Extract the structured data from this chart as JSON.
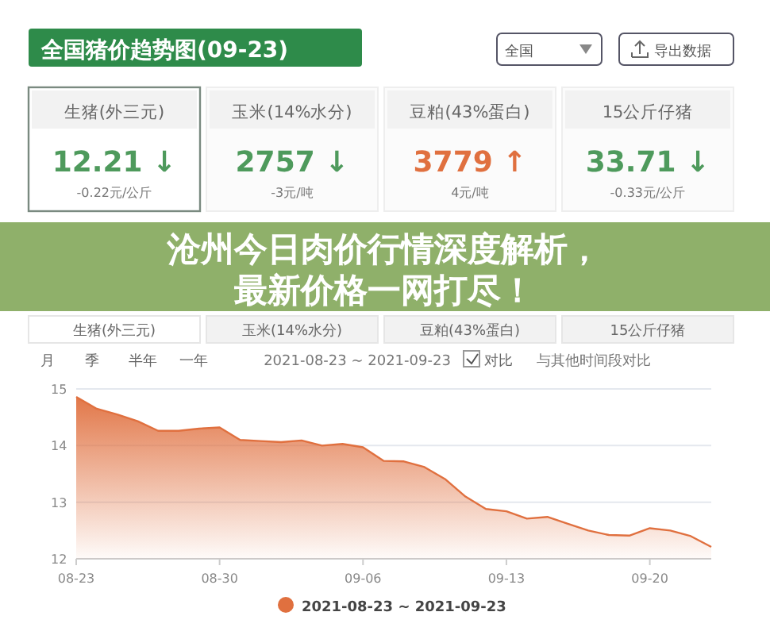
{
  "chart_data": [
    {
      "type": "other",
      "title": "全国猪价趋势图(09-23)",
      "annotations": [
        "全国",
        "导出数据",
        "生猪(外三元)",
        "12.21 ↓",
        "-0.22元/公斤",
        "玉米(14%水分)",
        "2757 ↓",
        "-3元/吨",
        "豆粕(43%蛋白)",
        "3779 ↑",
        "4元/吨",
        "15公斤仔猪",
        "33.71 ↓",
        "-0.33元/公斤"
      ],
      "colors": [
        "#4e9a5c",
        "#4e9a5c",
        "#e0703f",
        "#4e9a5c"
      ]
    },
    {
      "type": "area",
      "title": "沧州今日肉价行情深度解析，最新价格一网打尽！",
      "annotations": [
        "生猪(外三元)",
        "玉米(14%水分)",
        "豆粕(43%蛋白)",
        "15公斤仔猪",
        "月",
        "季",
        "半年",
        "一年",
        "2021-08-23 ~ 2021-09-23",
        "对比",
        "与其他时间段对比"
      ],
      "x": [
        "2021-08-23",
        "2021-08-24",
        "2021-08-25",
        "2021-08-26",
        "2021-08-27",
        "2021-08-28",
        "2021-08-29",
        "2021-08-30",
        "2021-08-31",
        "2021-09-01",
        "2021-09-02",
        "2021-09-03",
        "2021-09-04",
        "2021-09-05",
        "2021-09-06",
        "2021-09-07",
        "2021-09-08",
        "2021-09-09",
        "2021-09-10",
        "2021-09-11",
        "2021-09-12",
        "2021-09-13",
        "2021-09-14",
        "2021-09-15",
        "2021-09-16",
        "2021-09-17",
        "2021-09-18",
        "2021-09-19",
        "2021-09-20",
        "2021-09-21",
        "2021-09-22",
        "2021-09-23"
      ],
      "series": [
        {
          "name": "2021-08-23 ~ 2021-09-23",
          "color": "#e0703f",
          "values": [
            14.86,
            14.65,
            14.55,
            14.43,
            14.26,
            14.26,
            14.3,
            14.32,
            14.1,
            14.08,
            14.06,
            14.09,
            14.0,
            14.03,
            13.97,
            13.73,
            13.72,
            13.62,
            13.41,
            13.1,
            12.88,
            12.84,
            12.71,
            12.74,
            12.62,
            12.5,
            12.42,
            12.41,
            12.54,
            12.5,
            12.4,
            12.21
          ]
        }
      ],
      "xlim": [
        "2021-08-23",
        "2021-09-23"
      ],
      "xticks": [
        {
          "value": "2021-08-23",
          "label": "08-23"
        },
        {
          "value": "2021-08-30",
          "label": "08-30"
        },
        {
          "value": "2021-09-06",
          "label": "09-06"
        },
        {
          "value": "2021-09-13",
          "label": "09-13"
        },
        {
          "value": "2021-09-20",
          "label": "09-20"
        }
      ],
      "ylim": [
        12,
        15
      ],
      "yticks": [
        12,
        13,
        14,
        15
      ],
      "grid": "y",
      "legend": "bottom",
      "marker": "none"
    }
  ]
}
